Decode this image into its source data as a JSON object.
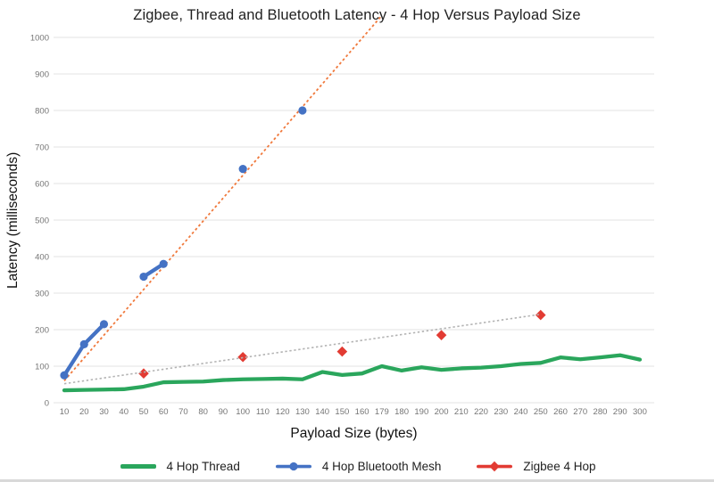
{
  "chart_data": {
    "type": "line",
    "title": "Zigbee, Thread and Bluetooth Latency - 4 Hop Versus Payload Size",
    "xlabel": "Payload Size (bytes)",
    "ylabel": "Latency (milliseconds)",
    "ylim": [
      0,
      1000
    ],
    "yticks": [
      0,
      100,
      200,
      300,
      400,
      500,
      600,
      700,
      800,
      900,
      1000
    ],
    "grid": true,
    "legend_position": "bottom",
    "categories": [
      10,
      20,
      30,
      40,
      50,
      60,
      70,
      80,
      90,
      100,
      110,
      120,
      130,
      140,
      150,
      160,
      179,
      180,
      190,
      200,
      210,
      220,
      230,
      240,
      250,
      260,
      270,
      280,
      290,
      300
    ],
    "series": [
      {
        "name": "4 Hop Thread",
        "color": "#2aa65c",
        "line": true,
        "marker": "none",
        "values": [
          34,
          35,
          36,
          37,
          44,
          56,
          57,
          58,
          62,
          64,
          65,
          66,
          64,
          84,
          76,
          80,
          100,
          88,
          97,
          90,
          94,
          96,
          100,
          106,
          109,
          124,
          119,
          124,
          130,
          118
        ]
      },
      {
        "name": "4 Hop Bluetooth Mesh",
        "color": "#4472c4",
        "line": true,
        "marker": "circle",
        "values": [
          75,
          160,
          215,
          null,
          345,
          380,
          null,
          null,
          null,
          640,
          null,
          null,
          800,
          null,
          null,
          null,
          null,
          null,
          null,
          null,
          null,
          null,
          null,
          null,
          null,
          null,
          null,
          null,
          null,
          null
        ]
      },
      {
        "name": "Zigbee 4 Hop",
        "color": "#e23b33",
        "line": false,
        "marker": "diamond",
        "values": [
          null,
          null,
          null,
          null,
          80,
          null,
          null,
          null,
          null,
          125,
          null,
          null,
          null,
          null,
          140,
          null,
          null,
          null,
          null,
          185,
          null,
          null,
          null,
          null,
          240,
          null,
          null,
          null,
          null,
          null
        ]
      }
    ],
    "trendlines": [
      {
        "for": "4 Hop Bluetooth Mesh",
        "style": "dotted",
        "color": "#f0793c",
        "x_start": 10,
        "y_start": 60,
        "x_end": 170,
        "y_end": 1060
      },
      {
        "for": "Zigbee 4 Hop",
        "style": "dotted",
        "color": "#b3b3b3",
        "x_start": 10,
        "y_start": 52,
        "x_end": 250,
        "y_end": 242
      }
    ],
    "colors": {
      "gridline": "#e3e3e3",
      "tick_label": "#757575",
      "title_text": "#1f1f1f",
      "axis_title_text": "#111111"
    }
  }
}
